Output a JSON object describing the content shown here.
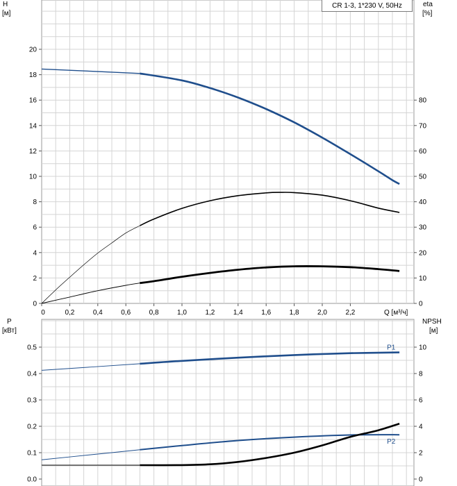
{
  "chart_data": [
    {
      "type": "line",
      "title": "CR 1-3, 1*230 V, 50Hz",
      "xlabel": "Q [м³/ч]",
      "x_ticks": [
        "0",
        "0,2",
        "0,4",
        "0,6",
        "0,8",
        "1,0",
        "1,2",
        "1,4",
        "1,6",
        "1,8",
        "2,0",
        "2,2"
      ],
      "xlim": [
        0,
        2.6
      ],
      "y_left": {
        "label": "H",
        "unit": "[м]",
        "lim": [
          0,
          22
        ],
        "ticks": [
          "0",
          "2",
          "4",
          "6",
          "8",
          "10",
          "12",
          "14",
          "16",
          "18",
          "20"
        ]
      },
      "y_right": {
        "label": "eta",
        "unit": "[%]",
        "lim": [
          0,
          110
        ],
        "ticks": [
          "0",
          "10",
          "20",
          "30",
          "40",
          "50",
          "60",
          "70",
          "80"
        ]
      },
      "grid": true,
      "series": [
        {
          "axis": "left",
          "color": "#1f4e8c",
          "x": [
            0,
            0.7,
            1.0,
            1.2,
            1.4,
            1.6,
            1.8,
            2.0,
            2.2,
            2.4,
            2.5,
            2.55
          ],
          "y": [
            18.45,
            18.1,
            17.55,
            16.95,
            16.2,
            15.3,
            14.25,
            13.05,
            11.75,
            10.4,
            9.7,
            9.4
          ]
        },
        {
          "axis": "right",
          "color": "#000000",
          "x": [
            0,
            0.1,
            0.2,
            0.3,
            0.4,
            0.5,
            0.6,
            0.7,
            0.8,
            1.0,
            1.2,
            1.4,
            1.6,
            1.7,
            1.8,
            2.0,
            2.2,
            2.4,
            2.55
          ],
          "y": [
            0,
            5.3,
            10.3,
            15.2,
            19.8,
            23.8,
            27.7,
            30.6,
            33.2,
            37.4,
            40.4,
            42.4,
            43.5,
            43.7,
            43.6,
            42.6,
            40.4,
            37.5,
            35.8
          ]
        },
        {
          "axis": "left",
          "color": "#000000",
          "x": [
            0,
            0.2,
            0.4,
            0.6,
            0.7,
            0.8,
            1.0,
            1.2,
            1.4,
            1.6,
            1.8,
            2.0,
            2.2,
            2.4,
            2.55
          ],
          "y": [
            0,
            0.5,
            1.0,
            1.42,
            1.6,
            1.75,
            2.1,
            2.4,
            2.65,
            2.83,
            2.92,
            2.92,
            2.85,
            2.7,
            2.55
          ]
        }
      ]
    },
    {
      "type": "line",
      "xlim": [
        0,
        2.6
      ],
      "y_left": {
        "label": "P",
        "unit": "[кВт]",
        "lim": [
          0,
          0.6
        ],
        "ticks": [
          "0.0",
          "0.1",
          "0.2",
          "0.3",
          "0.4",
          "0.5"
        ]
      },
      "y_right": {
        "label": "NPSH",
        "unit": "[м]",
        "lim": [
          0,
          12
        ],
        "ticks": [
          "0",
          "2",
          "4",
          "6",
          "8",
          "10"
        ]
      },
      "grid": true,
      "series": [
        {
          "name": "P1",
          "axis": "left",
          "color": "#1f4e8c",
          "x": [
            0,
            0.7,
            1.0,
            1.4,
            1.8,
            2.2,
            2.55
          ],
          "y": [
            0.412,
            0.437,
            0.448,
            0.46,
            0.47,
            0.477,
            0.48
          ]
        },
        {
          "name": "P2",
          "axis": "left",
          "color": "#1f4e8c",
          "x": [
            0,
            0.35,
            0.7,
            1.0,
            1.4,
            1.8,
            2.2,
            2.55
          ],
          "y": [
            0.073,
            0.092,
            0.111,
            0.127,
            0.146,
            0.159,
            0.167,
            0.168
          ]
        },
        {
          "axis": "right",
          "color": "#000000",
          "x": [
            0,
            0.7,
            1.0,
            1.2,
            1.4,
            1.6,
            1.8,
            2.0,
            2.2,
            2.4,
            2.55
          ],
          "y": [
            1.05,
            1.05,
            1.06,
            1.12,
            1.3,
            1.6,
            2.0,
            2.55,
            3.2,
            3.7,
            4.2
          ]
        }
      ]
    }
  ]
}
